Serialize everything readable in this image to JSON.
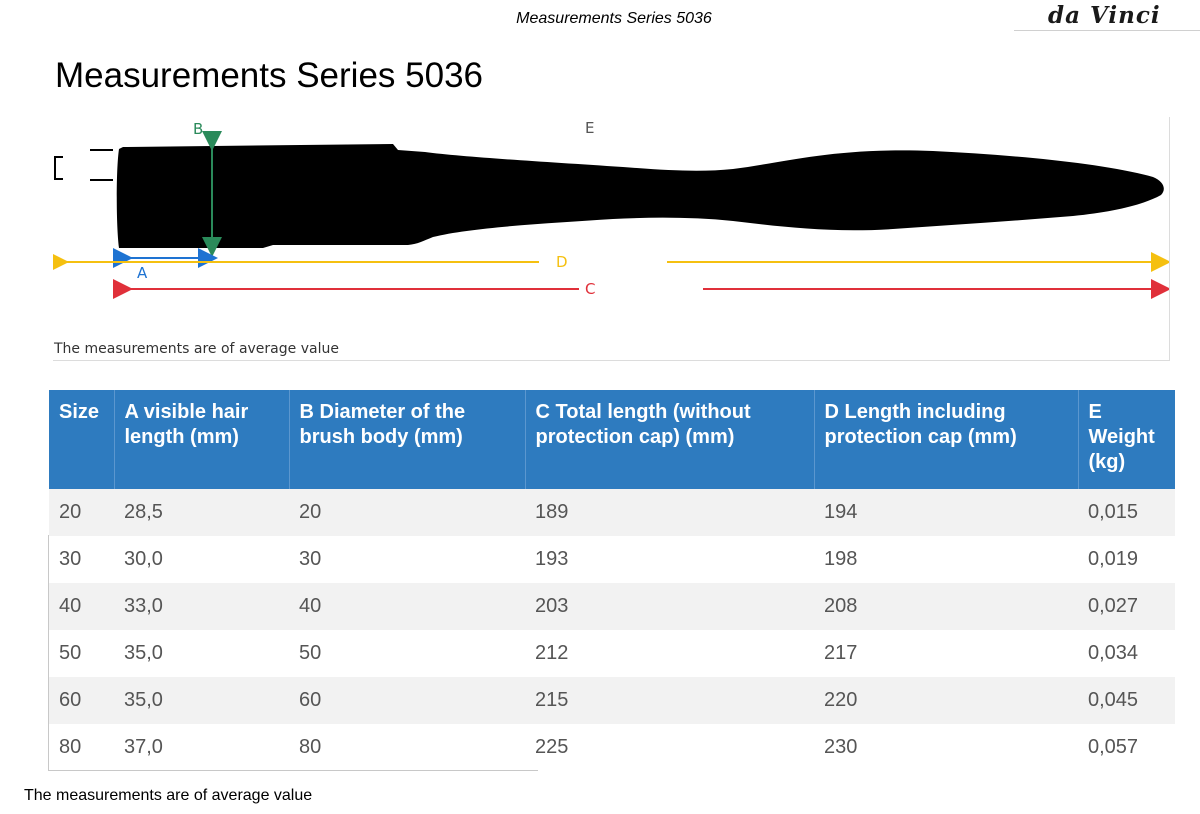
{
  "header": {
    "title": "Measurements Series 5036",
    "logo_text": "da Vinci"
  },
  "page_title": "Measurements Series 5036",
  "diagram": {
    "labels": {
      "a": "A",
      "b": "B",
      "c": "C",
      "d": "D",
      "e": "E"
    },
    "note": "The measurements are of average value",
    "colors": {
      "a": "#1e73d2",
      "b": "#2a8a5a",
      "c": "#e0303a",
      "d": "#f5c010",
      "brush": "#000000"
    }
  },
  "table": {
    "headers": [
      "Size",
      "A visible hair length (mm)",
      "B Diameter of the brush body (mm)",
      "C Total length (without protection cap) (mm)",
      "D Length including protection cap (mm)",
      "E Weight (kg)"
    ],
    "rows": [
      [
        "20",
        "28,5",
        "20",
        "189",
        "194",
        "0,015"
      ],
      [
        "30",
        "30,0",
        "30",
        "193",
        "198",
        "0,019"
      ],
      [
        "40",
        "33,0",
        "40",
        "203",
        "208",
        "0,027"
      ],
      [
        "50",
        "35,0",
        "50",
        "212",
        "217",
        "0,034"
      ],
      [
        "60",
        "35,0",
        "60",
        "215",
        "220",
        "0,045"
      ],
      [
        "80",
        "37,0",
        "80",
        "225",
        "230",
        "0,057"
      ]
    ]
  },
  "footer": {
    "note": "The measurements are of average value"
  }
}
